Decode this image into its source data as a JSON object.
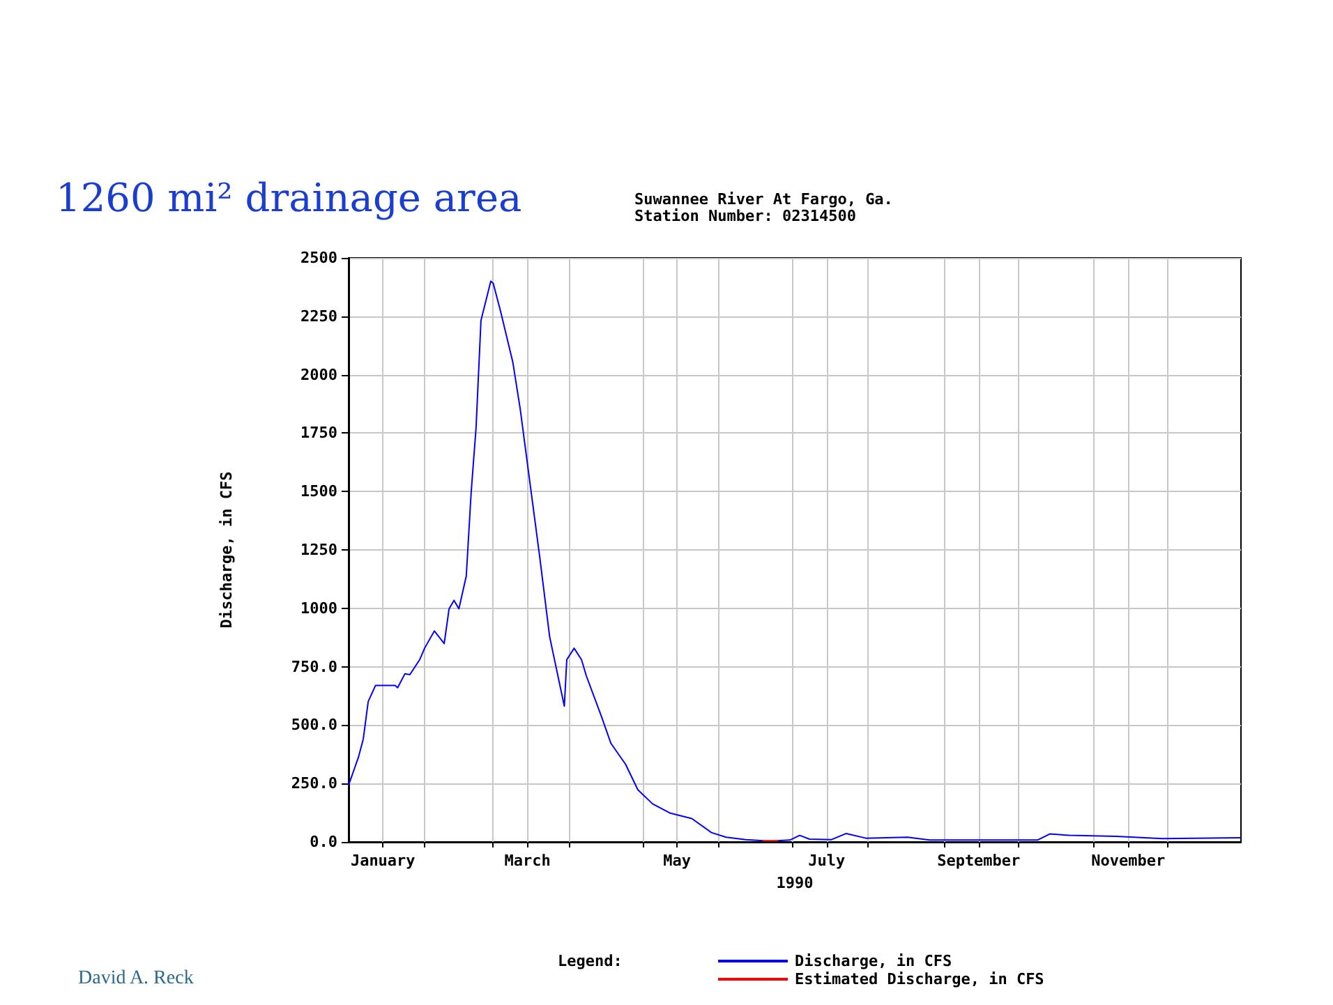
{
  "chart_data": {
    "type": "line",
    "title": "Suwannee River At Fargo, Ga.\nStation Number: 02314500",
    "xlabel": "1990",
    "ylabel": "Discharge, in CFS",
    "legend_title": "Legend:",
    "annotations": [
      "1260 mi² drainage area",
      "David A. Reck"
    ],
    "xlim": [
      "1990-01-01",
      "1990-12-31"
    ],
    "xticks": [
      {
        "value": "1990-01-15",
        "label": "January"
      },
      {
        "value": "1990-02-01",
        "label": null
      },
      {
        "value": "1990-03-01",
        "label": null
      },
      {
        "value": "1990-03-15",
        "label": "March"
      },
      {
        "value": "1990-04-01",
        "label": null
      },
      {
        "value": "1990-05-01",
        "label": null
      },
      {
        "value": "1990-05-15",
        "label": "May"
      },
      {
        "value": "1990-06-01",
        "label": null
      },
      {
        "value": "1990-07-01",
        "label": null
      },
      {
        "value": "1990-07-15",
        "label": "July"
      },
      {
        "value": "1990-08-01",
        "label": null
      },
      {
        "value": "1990-09-01",
        "label": null
      },
      {
        "value": "1990-09-15",
        "label": "September"
      },
      {
        "value": "1990-10-01",
        "label": null
      },
      {
        "value": "1990-11-01",
        "label": null
      },
      {
        "value": "1990-11-15",
        "label": "November"
      },
      {
        "value": "1990-12-01",
        "label": null
      }
    ],
    "ylim": [
      0,
      2500
    ],
    "yticks": [
      {
        "value": 0,
        "label": "0.0"
      },
      {
        "value": 250,
        "label": "250.0"
      },
      {
        "value": 500,
        "label": "500.0"
      },
      {
        "value": 750,
        "label": "750.0"
      },
      1000,
      1250,
      1500,
      1750,
      2000,
      2250,
      2500
    ],
    "grid": true,
    "legend": "bottom",
    "marker": "none",
    "line_style": "solid",
    "series": [
      {
        "name": "Discharge, in CFS",
        "color": "#0000ff",
        "x": [
          "1990-01-01",
          "1990-01-05",
          "1990-01-07",
          "1990-01-09",
          "1990-01-12",
          "1990-01-20",
          "1990-01-21",
          "1990-01-24",
          "1990-01-26",
          "1990-01-30",
          "1990-02-01",
          "1990-02-05",
          "1990-02-09",
          "1990-02-11",
          "1990-02-13",
          "1990-02-15",
          "1990-02-18",
          "1990-02-20",
          "1990-02-22",
          "1990-02-24",
          "1990-02-28",
          "1990-03-01",
          "1990-03-04",
          "1990-03-09",
          "1990-03-12",
          "1990-03-16",
          "1990-03-20",
          "1990-03-24",
          "1990-03-28",
          "1990-03-30",
          "1990-03-31",
          "1990-04-03",
          "1990-04-06",
          "1990-04-08",
          "1990-04-14",
          "1990-04-18",
          "1990-04-24",
          "1990-04-29",
          "1990-05-05",
          "1990-05-12",
          "1990-05-21",
          "1990-05-29",
          "1990-06-04",
          "1990-06-12",
          "1990-06-19",
          "1990-06-22",
          "1990-06-25",
          "1990-06-30",
          "1990-07-04",
          "1990-07-08",
          "1990-07-17",
          "1990-07-23",
          "1990-07-31",
          "1990-08-17",
          "1990-08-26",
          "1990-09-14",
          "1990-10-09",
          "1990-10-14",
          "1990-10-22",
          "1990-11-10",
          "1990-11-29",
          "1990-12-31"
        ],
        "values": [
          243,
          362,
          441,
          601,
          670,
          670,
          660,
          720,
          716,
          780,
          829,
          903,
          849,
          998,
          1034,
          998,
          1138,
          1496,
          1774,
          2232,
          2400,
          2391,
          2271,
          2053,
          1854,
          1535,
          1217,
          879,
          680,
          581,
          780,
          829,
          780,
          710,
          541,
          422,
          332,
          223,
          163,
          124,
          100,
          40,
          20,
          10,
          5,
          null,
          5,
          8,
          28,
          12,
          10,
          36,
          16,
          20,
          8,
          8,
          8,
          34,
          28,
          24,
          14,
          18
        ]
      },
      {
        "name": "Estimated Discharge, in CFS",
        "color": "#ff0000",
        "x": [
          "1990-06-19",
          "1990-06-25"
        ],
        "values": [
          5,
          5
        ]
      }
    ]
  }
}
